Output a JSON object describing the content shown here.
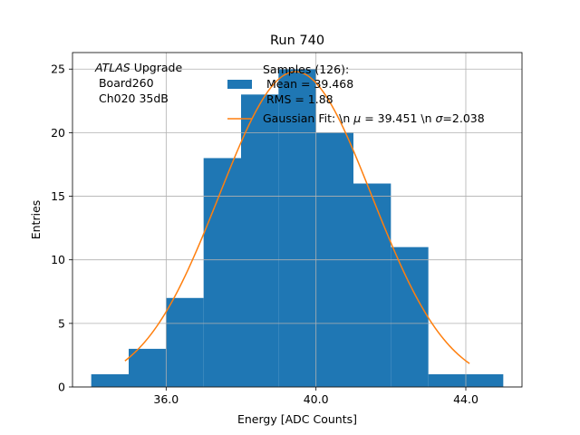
{
  "chart_data": {
    "type": "bar",
    "title": "Run 740",
    "xlabel": "Energy [ADC Counts]",
    "ylabel": "Entries",
    "xlim": [
      33.5,
      45.5
    ],
    "ylim": [
      0,
      26.3
    ],
    "xticks": [
      36.0,
      40.0,
      44.0
    ],
    "xtick_labels": [
      "36.0",
      "40.0",
      "44.0"
    ],
    "yticks": [
      0,
      5,
      10,
      15,
      20,
      25
    ],
    "ytick_labels": [
      "0",
      "5",
      "10",
      "15",
      "20",
      "25"
    ],
    "grid": true,
    "annotation": {
      "italic": "ATLAS",
      "line1_rest": " Upgrade",
      "line2": " Board260",
      "line3": " Ch020 35dB"
    },
    "histogram": {
      "name": "Samples (126):",
      "color": "#1f77b4",
      "bin_edges": [
        34,
        35,
        36,
        37,
        38,
        39,
        40,
        41,
        42,
        43,
        44,
        45
      ],
      "counts": [
        1,
        3,
        7,
        18,
        23,
        25,
        20,
        16,
        11,
        1,
        1
      ]
    },
    "fit": {
      "color": "#ff7f0e",
      "amplitude": 24.8,
      "mu": 39.451,
      "sigma": 2.038,
      "x_range": [
        34.9,
        44.1
      ]
    },
    "legend": {
      "position": "top-center",
      "hist_line1": "Samples (126):",
      "hist_line2": " Mean = 39.468",
      "hist_line3": " RMS = 1.88",
      "fit_prefix": "Gaussian Fit: \\n ",
      "fit_mu_sym": "μ",
      "fit_mid": " = 39.451 \\n ",
      "fit_sigma_sym": "σ",
      "fit_suffix": "=2.038"
    }
  }
}
